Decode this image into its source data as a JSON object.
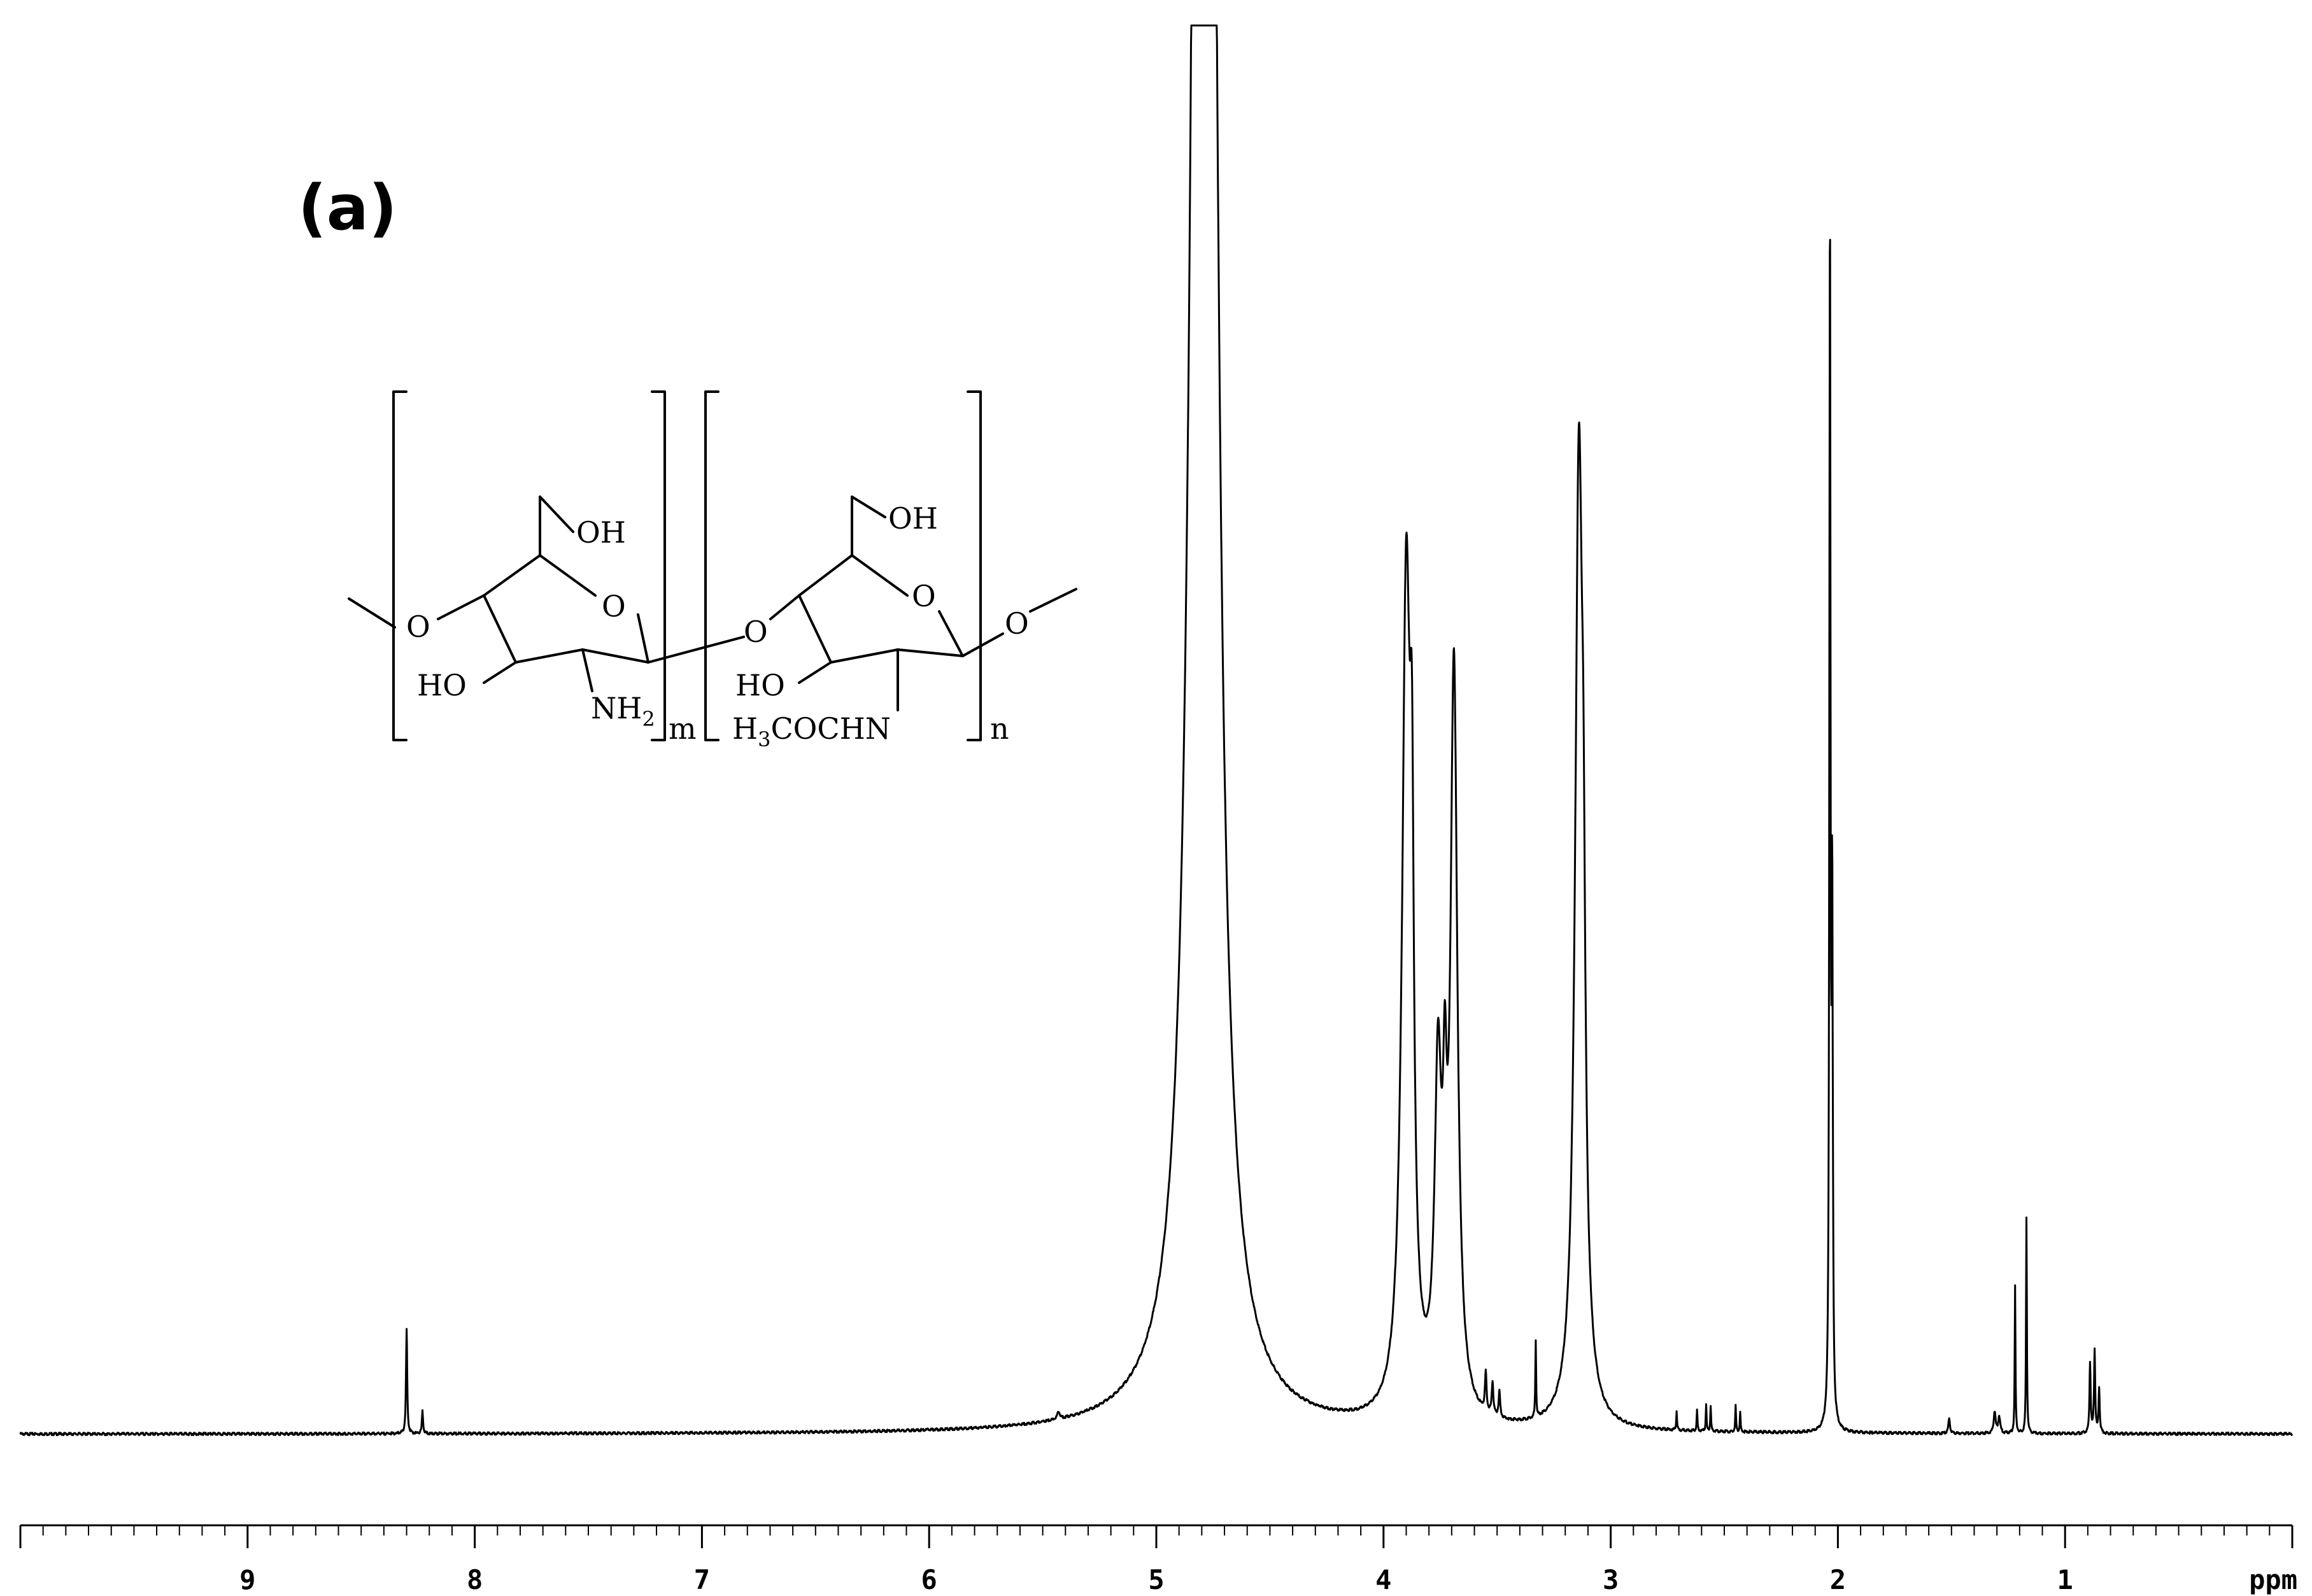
{
  "figure": {
    "panel_label": "(a)"
  },
  "structure": {
    "labels": {
      "oh_left": "OH",
      "o_ring_left": "O",
      "o_link_left": "O",
      "ho_left": "HO",
      "nh2_main": "NH",
      "nh2_sub": "2",
      "m": "m",
      "oh_right": "OH",
      "o_ring_right": "O",
      "o_link_mid": "O",
      "o_link_right": "O",
      "ho_right": "HO",
      "acetyl_h": "H",
      "acetyl_sub": "3",
      "acetyl_rest": "COCHN",
      "n": "n"
    }
  },
  "chart_data": {
    "type": "line",
    "title": "",
    "xlabel": "",
    "ylabel": "",
    "x_unit_label": "ppm",
    "xlim": [
      10.0,
      0.0
    ],
    "x_reversed": true,
    "ylim": [
      0,
      100
    ],
    "grid": false,
    "legend": "none",
    "major_ticks": [
      9,
      8,
      7,
      6,
      5,
      4,
      3,
      2,
      1
    ],
    "minor_tick_step": 0.1,
    "series": [
      {
        "peaks": [
          {
            "ppm": 8.3,
            "height": 8.2,
            "width": 0.003
          },
          {
            "ppm": 8.23,
            "height": 1.8,
            "width": 0.003
          },
          {
            "ppm": 5.43,
            "height": 0.6,
            "width": 0.006
          },
          {
            "ppm": 4.79,
            "height": 400.0,
            "width": 0.035
          },
          {
            "ppm": 3.9,
            "height": 65.0,
            "width": 0.022
          },
          {
            "ppm": 3.875,
            "height": 30.0,
            "width": 0.01
          },
          {
            "ppm": 3.76,
            "height": 25.0,
            "width": 0.018
          },
          {
            "ppm": 3.73,
            "height": 16.0,
            "width": 0.01
          },
          {
            "ppm": 3.69,
            "height": 58.0,
            "width": 0.018
          },
          {
            "ppm": 3.55,
            "height": 3.0,
            "width": 0.004
          },
          {
            "ppm": 3.52,
            "height": 2.6,
            "width": 0.004
          },
          {
            "ppm": 3.49,
            "height": 2.0,
            "width": 0.004
          },
          {
            "ppm": 3.33,
            "height": 6.0,
            "width": 0.002
          },
          {
            "ppm": 3.14,
            "height": 75.0,
            "width": 0.02
          },
          {
            "ppm": 3.12,
            "height": 20.0,
            "width": 0.01
          },
          {
            "ppm": 2.71,
            "height": 1.5,
            "width": 0.002
          },
          {
            "ppm": 2.62,
            "height": 1.6,
            "width": 0.002
          },
          {
            "ppm": 2.58,
            "height": 2.0,
            "width": 0.002
          },
          {
            "ppm": 2.56,
            "height": 2.0,
            "width": 0.002
          },
          {
            "ppm": 2.45,
            "height": 2.0,
            "width": 0.002
          },
          {
            "ppm": 2.43,
            "height": 1.5,
            "width": 0.002
          },
          {
            "ppm": 2.035,
            "height": 95.0,
            "width": 0.003
          },
          {
            "ppm": 2.025,
            "height": 40.0,
            "width": 0.003
          },
          {
            "ppm": 1.51,
            "height": 1.2,
            "width": 0.004
          },
          {
            "ppm": 1.31,
            "height": 1.7,
            "width": 0.005
          },
          {
            "ppm": 1.29,
            "height": 1.3,
            "width": 0.005
          },
          {
            "ppm": 1.22,
            "height": 11.5,
            "width": 0.002
          },
          {
            "ppm": 1.17,
            "height": 17.0,
            "width": 0.002
          },
          {
            "ppm": 0.89,
            "height": 5.5,
            "width": 0.003
          },
          {
            "ppm": 0.87,
            "height": 6.5,
            "width": 0.003
          },
          {
            "ppm": 0.85,
            "height": 3.5,
            "width": 0.003
          }
        ]
      }
    ]
  }
}
